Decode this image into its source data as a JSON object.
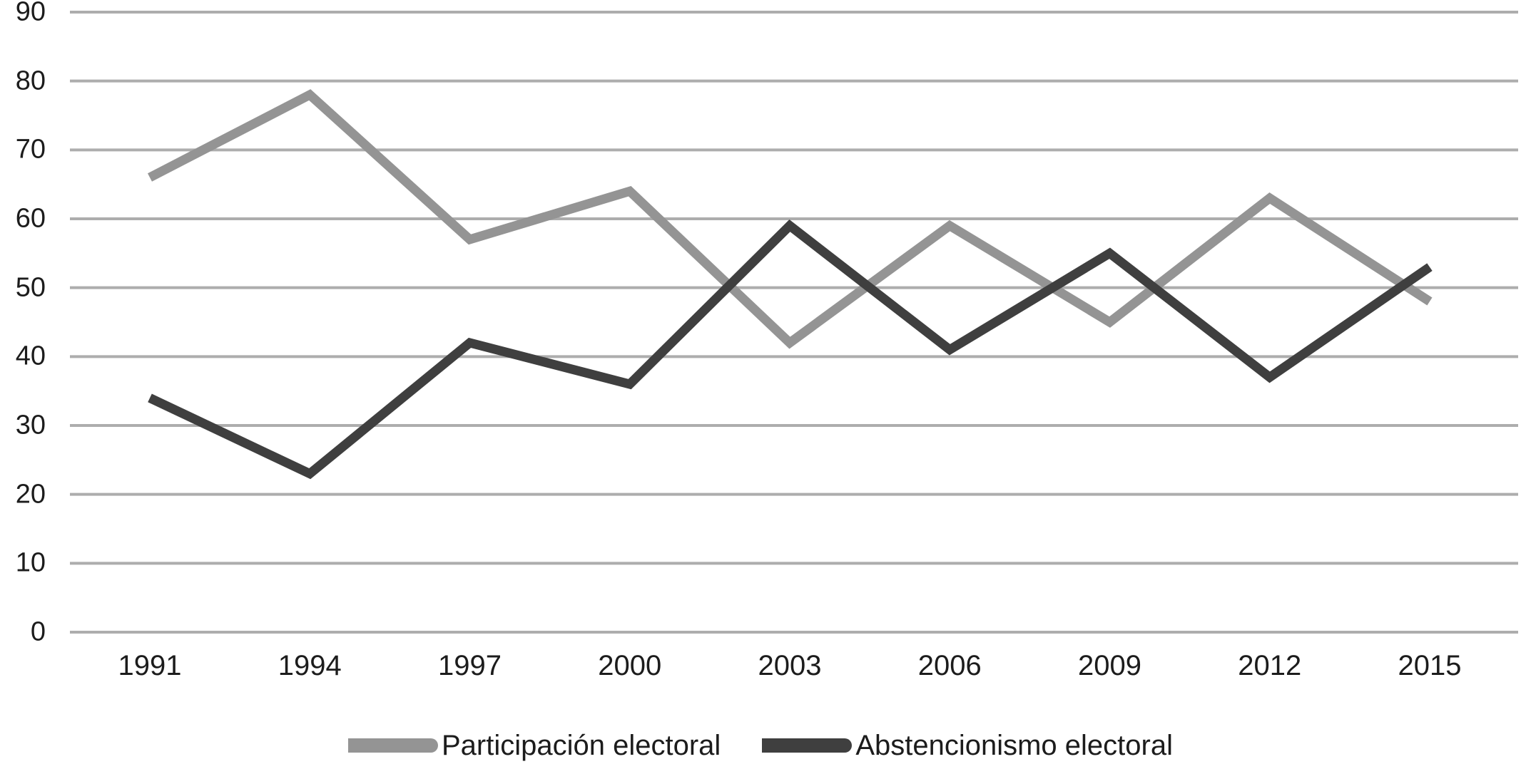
{
  "chart_data": {
    "type": "line",
    "title": "",
    "xlabel": "",
    "ylabel": "",
    "categories": [
      "1991",
      "1994",
      "1997",
      "2000",
      "2003",
      "2006",
      "2009",
      "2012",
      "2015"
    ],
    "series": [
      {
        "name": "Participación electoral",
        "color": "#949494",
        "values": [
          66,
          78,
          57,
          64,
          42,
          59,
          45,
          63,
          48
        ]
      },
      {
        "name": "Abstencionismo electoral",
        "color": "#3f3f3f",
        "values": [
          34,
          23,
          42,
          36,
          59,
          41,
          55,
          37,
          53
        ]
      }
    ],
    "ylim": [
      0,
      90
    ],
    "yticks": [
      0,
      10,
      20,
      30,
      40,
      50,
      60,
      70,
      80,
      90
    ],
    "grid": "horizontal",
    "legend_position": "bottom"
  },
  "colors": {
    "gridline": "#adadad",
    "axis_text": "#1c1c1c",
    "background": "#ffffff"
  }
}
